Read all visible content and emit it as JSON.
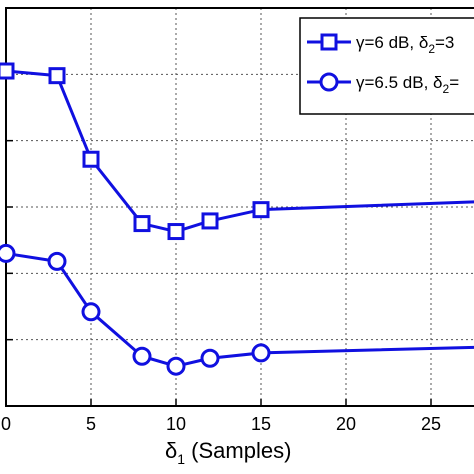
{
  "chart_data": {
    "type": "line",
    "xlabel_main": "δ",
    "xlabel_sub": "1",
    "xlabel_rest": " (Samples)",
    "xlim": [
      0,
      30
    ],
    "ylim": [
      0,
      6
    ],
    "xticks": [
      0,
      5,
      10,
      15,
      20,
      25
    ],
    "xtick_labels": [
      "0",
      "5",
      "10",
      "15",
      "20",
      "25"
    ],
    "yticks": [
      1,
      2,
      3,
      4,
      5,
      6
    ],
    "grid": true,
    "legend_position": "top-right",
    "series": [
      {
        "name_prefix": "γ=6 dB, δ",
        "name_sub": "2",
        "name_suffix": "=3",
        "marker": "square",
        "color": "#1010e0",
        "x": [
          0,
          3,
          5,
          8,
          10,
          12,
          15,
          30
        ],
        "y": [
          5.05,
          4.98,
          3.72,
          2.75,
          2.63,
          2.79,
          2.96,
          3.1
        ]
      },
      {
        "name_prefix": "γ=6.5 dB, δ",
        "name_sub": "2",
        "name_suffix": "=",
        "marker": "circle",
        "color": "#1010e0",
        "x": [
          0,
          3,
          5,
          8,
          10,
          12,
          15,
          30
        ],
        "y": [
          2.3,
          2.18,
          1.42,
          0.75,
          0.6,
          0.72,
          0.8,
          0.9
        ]
      }
    ]
  }
}
